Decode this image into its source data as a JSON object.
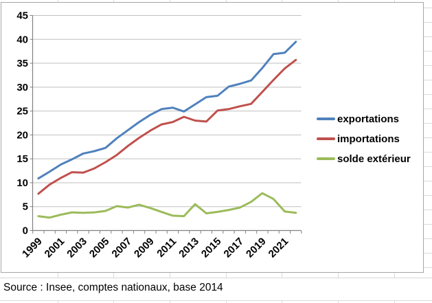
{
  "chart_data": {
    "type": "line",
    "title": "",
    "x": [
      1999,
      2000,
      2001,
      2002,
      2003,
      2004,
      2005,
      2006,
      2007,
      2008,
      2009,
      2010,
      2011,
      2012,
      2013,
      2014,
      2015,
      2016,
      2017,
      2018,
      2019,
      2020,
      2021,
      2022
    ],
    "x_tick_labels": [
      "1999",
      "2001",
      "2003",
      "2005",
      "2007",
      "2009",
      "2011",
      "2013",
      "2015",
      "2017",
      "2019",
      "2021"
    ],
    "label_every": 2,
    "series": [
      {
        "name": "exportations",
        "color": "#4F81BD",
        "values": [
          10.9,
          12.3,
          13.8,
          14.9,
          16.1,
          16.6,
          17.3,
          19.3,
          21.0,
          22.7,
          24.2,
          25.4,
          25.7,
          24.9,
          26.4,
          27.9,
          28.2,
          30.1,
          30.7,
          31.4,
          34.0,
          36.9,
          37.2,
          39.5
        ]
      },
      {
        "name": "importations",
        "color": "#C0504D",
        "values": [
          7.7,
          9.6,
          11.0,
          12.2,
          12.1,
          13.0,
          14.3,
          15.8,
          17.7,
          19.4,
          20.9,
          22.2,
          22.7,
          23.8,
          23.0,
          22.8,
          25.1,
          25.4,
          26.0,
          26.5,
          29.0,
          31.5,
          33.9,
          35.7
        ]
      },
      {
        "name": "solde extérieur",
        "color": "#9BBB59",
        "values": [
          3.0,
          2.7,
          3.3,
          3.8,
          3.7,
          3.8,
          4.1,
          5.1,
          4.8,
          5.4,
          4.7,
          3.9,
          3.1,
          3.0,
          5.5,
          3.6,
          3.9,
          4.3,
          4.8,
          6.0,
          7.8,
          6.6,
          4.0,
          3.7
        ]
      }
    ],
    "ylim": [
      0,
      45
    ],
    "ytick_step": 5,
    "grid": true,
    "legend_position": "right"
  },
  "legend": {
    "item1": "exportations",
    "item2": "importations",
    "item3": "solde extérieur"
  },
  "source_note": "Source : Insee, comptes nationaux, base 2014",
  "colors": {
    "exportations": "#4F81BD",
    "importations": "#C0504D",
    "solde": "#9BBB59",
    "gridline": "#bfbfbf",
    "axis": "#808080",
    "sheet_gridline": "#d9d9d9",
    "chart_border": "#a6a6a6"
  }
}
